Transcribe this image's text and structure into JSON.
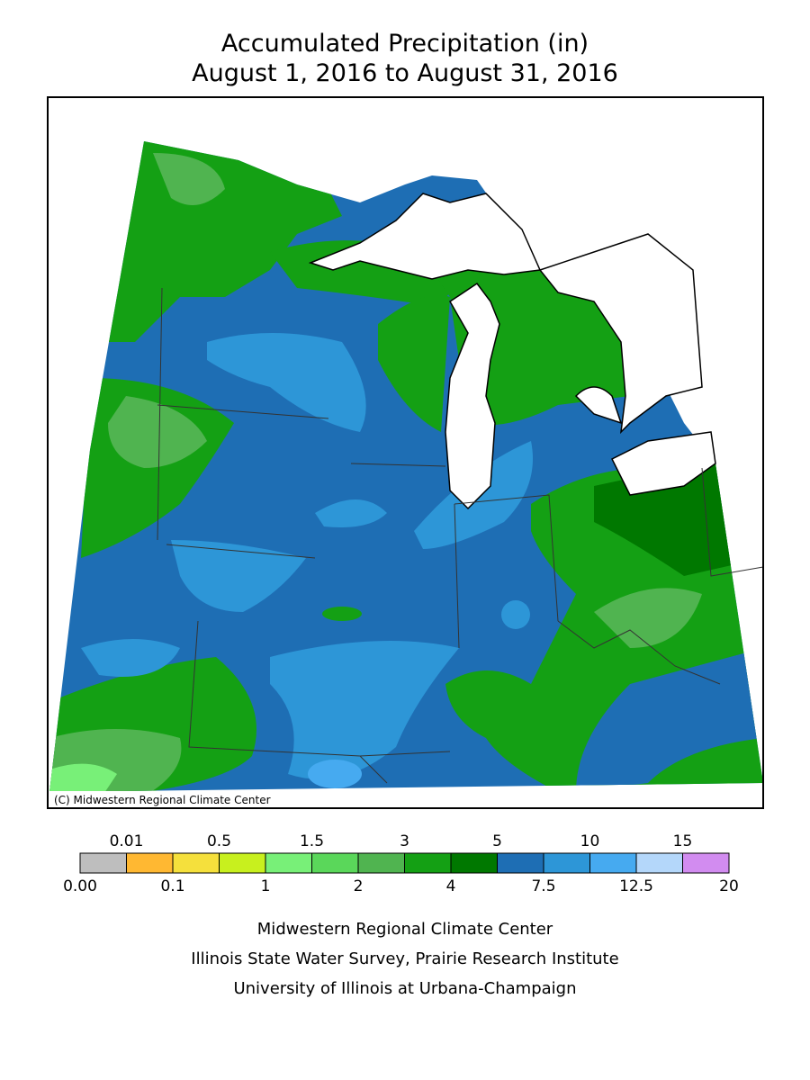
{
  "header": {
    "title": "Accumulated Precipitation (in)",
    "subtitle": "August 1, 2016 to August 31, 2016"
  },
  "map": {
    "credit": "(C) Midwestern Regional Climate Center"
  },
  "legend": {
    "labels": [
      "0.00",
      "0.01",
      "0.1",
      "0.5",
      "1",
      "1.5",
      "2",
      "3",
      "4",
      "5",
      "7.5",
      "10",
      "12.5",
      "15",
      "20"
    ],
    "colors": [
      "#bebebe",
      "#ffb832",
      "#f5e03c",
      "#c8f01e",
      "#78f078",
      "#5ad75a",
      "#50b450",
      "#14a014",
      "#007800",
      "#1e6eb4",
      "#2d96d7",
      "#46aaf0",
      "#b4d7fa",
      "#d28cf0"
    ]
  },
  "footer": {
    "lines": [
      "Midwestern Regional Climate Center",
      "Illinois State Water Survey, Prairie Research Institute",
      "University of Illinois at Urbana-Champaign"
    ]
  }
}
